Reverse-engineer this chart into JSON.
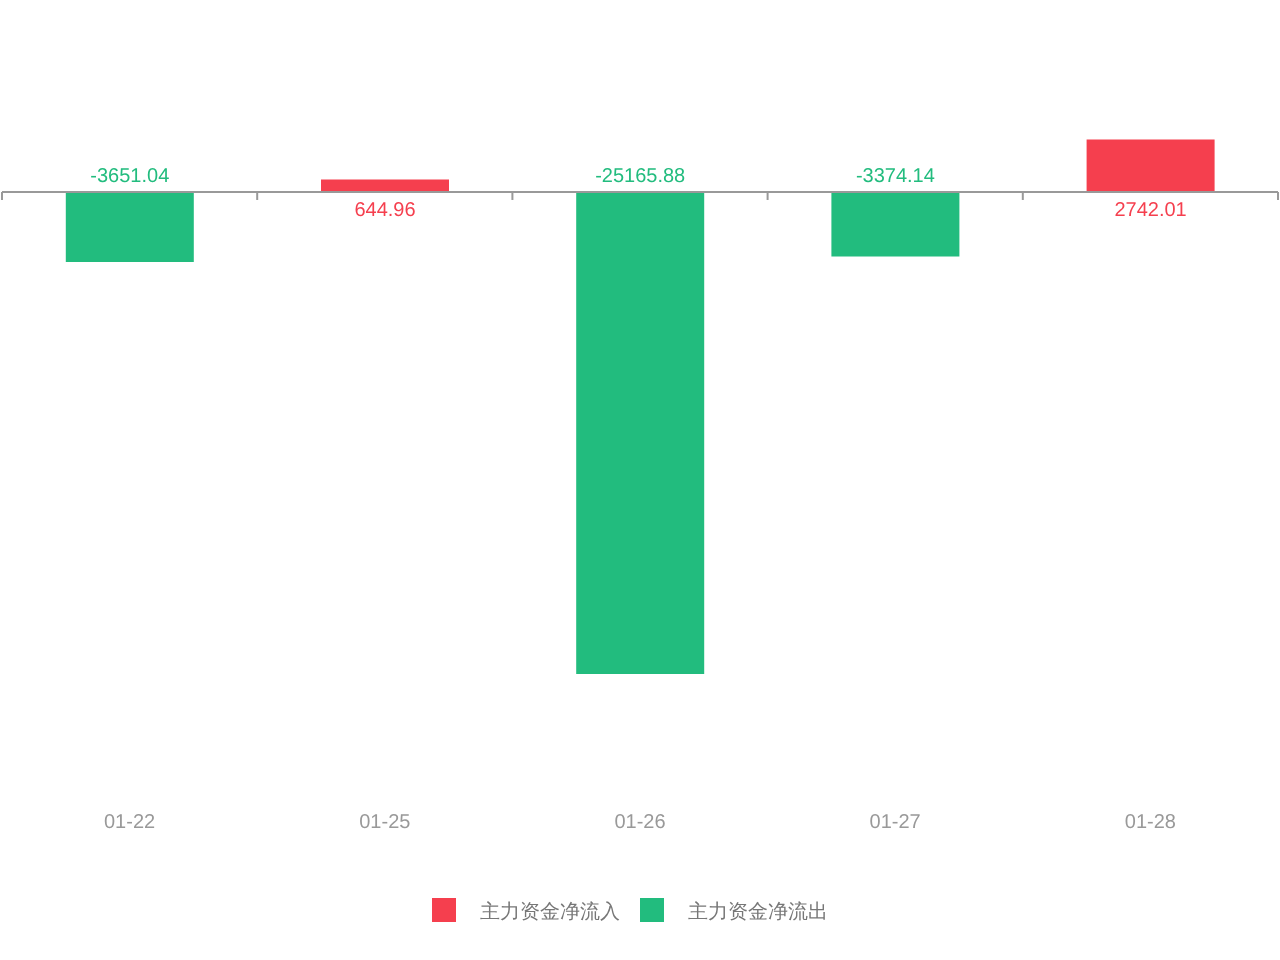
{
  "chart_data": {
    "type": "bar",
    "categories": [
      "01-22",
      "01-25",
      "01-26",
      "01-27",
      "01-28"
    ],
    "series": [
      {
        "name": "主力资金净流入",
        "color": "#f53f4e",
        "values": [
          null,
          644.96,
          null,
          null,
          2742.01
        ]
      },
      {
        "name": "主力资金净流出",
        "color": "#22bc7e",
        "values": [
          -3651.04,
          null,
          -25165.88,
          -3374.14,
          null
        ]
      }
    ],
    "stacked": true,
    "data_labels": true,
    "legend": "bottom",
    "grid": false
  }
}
